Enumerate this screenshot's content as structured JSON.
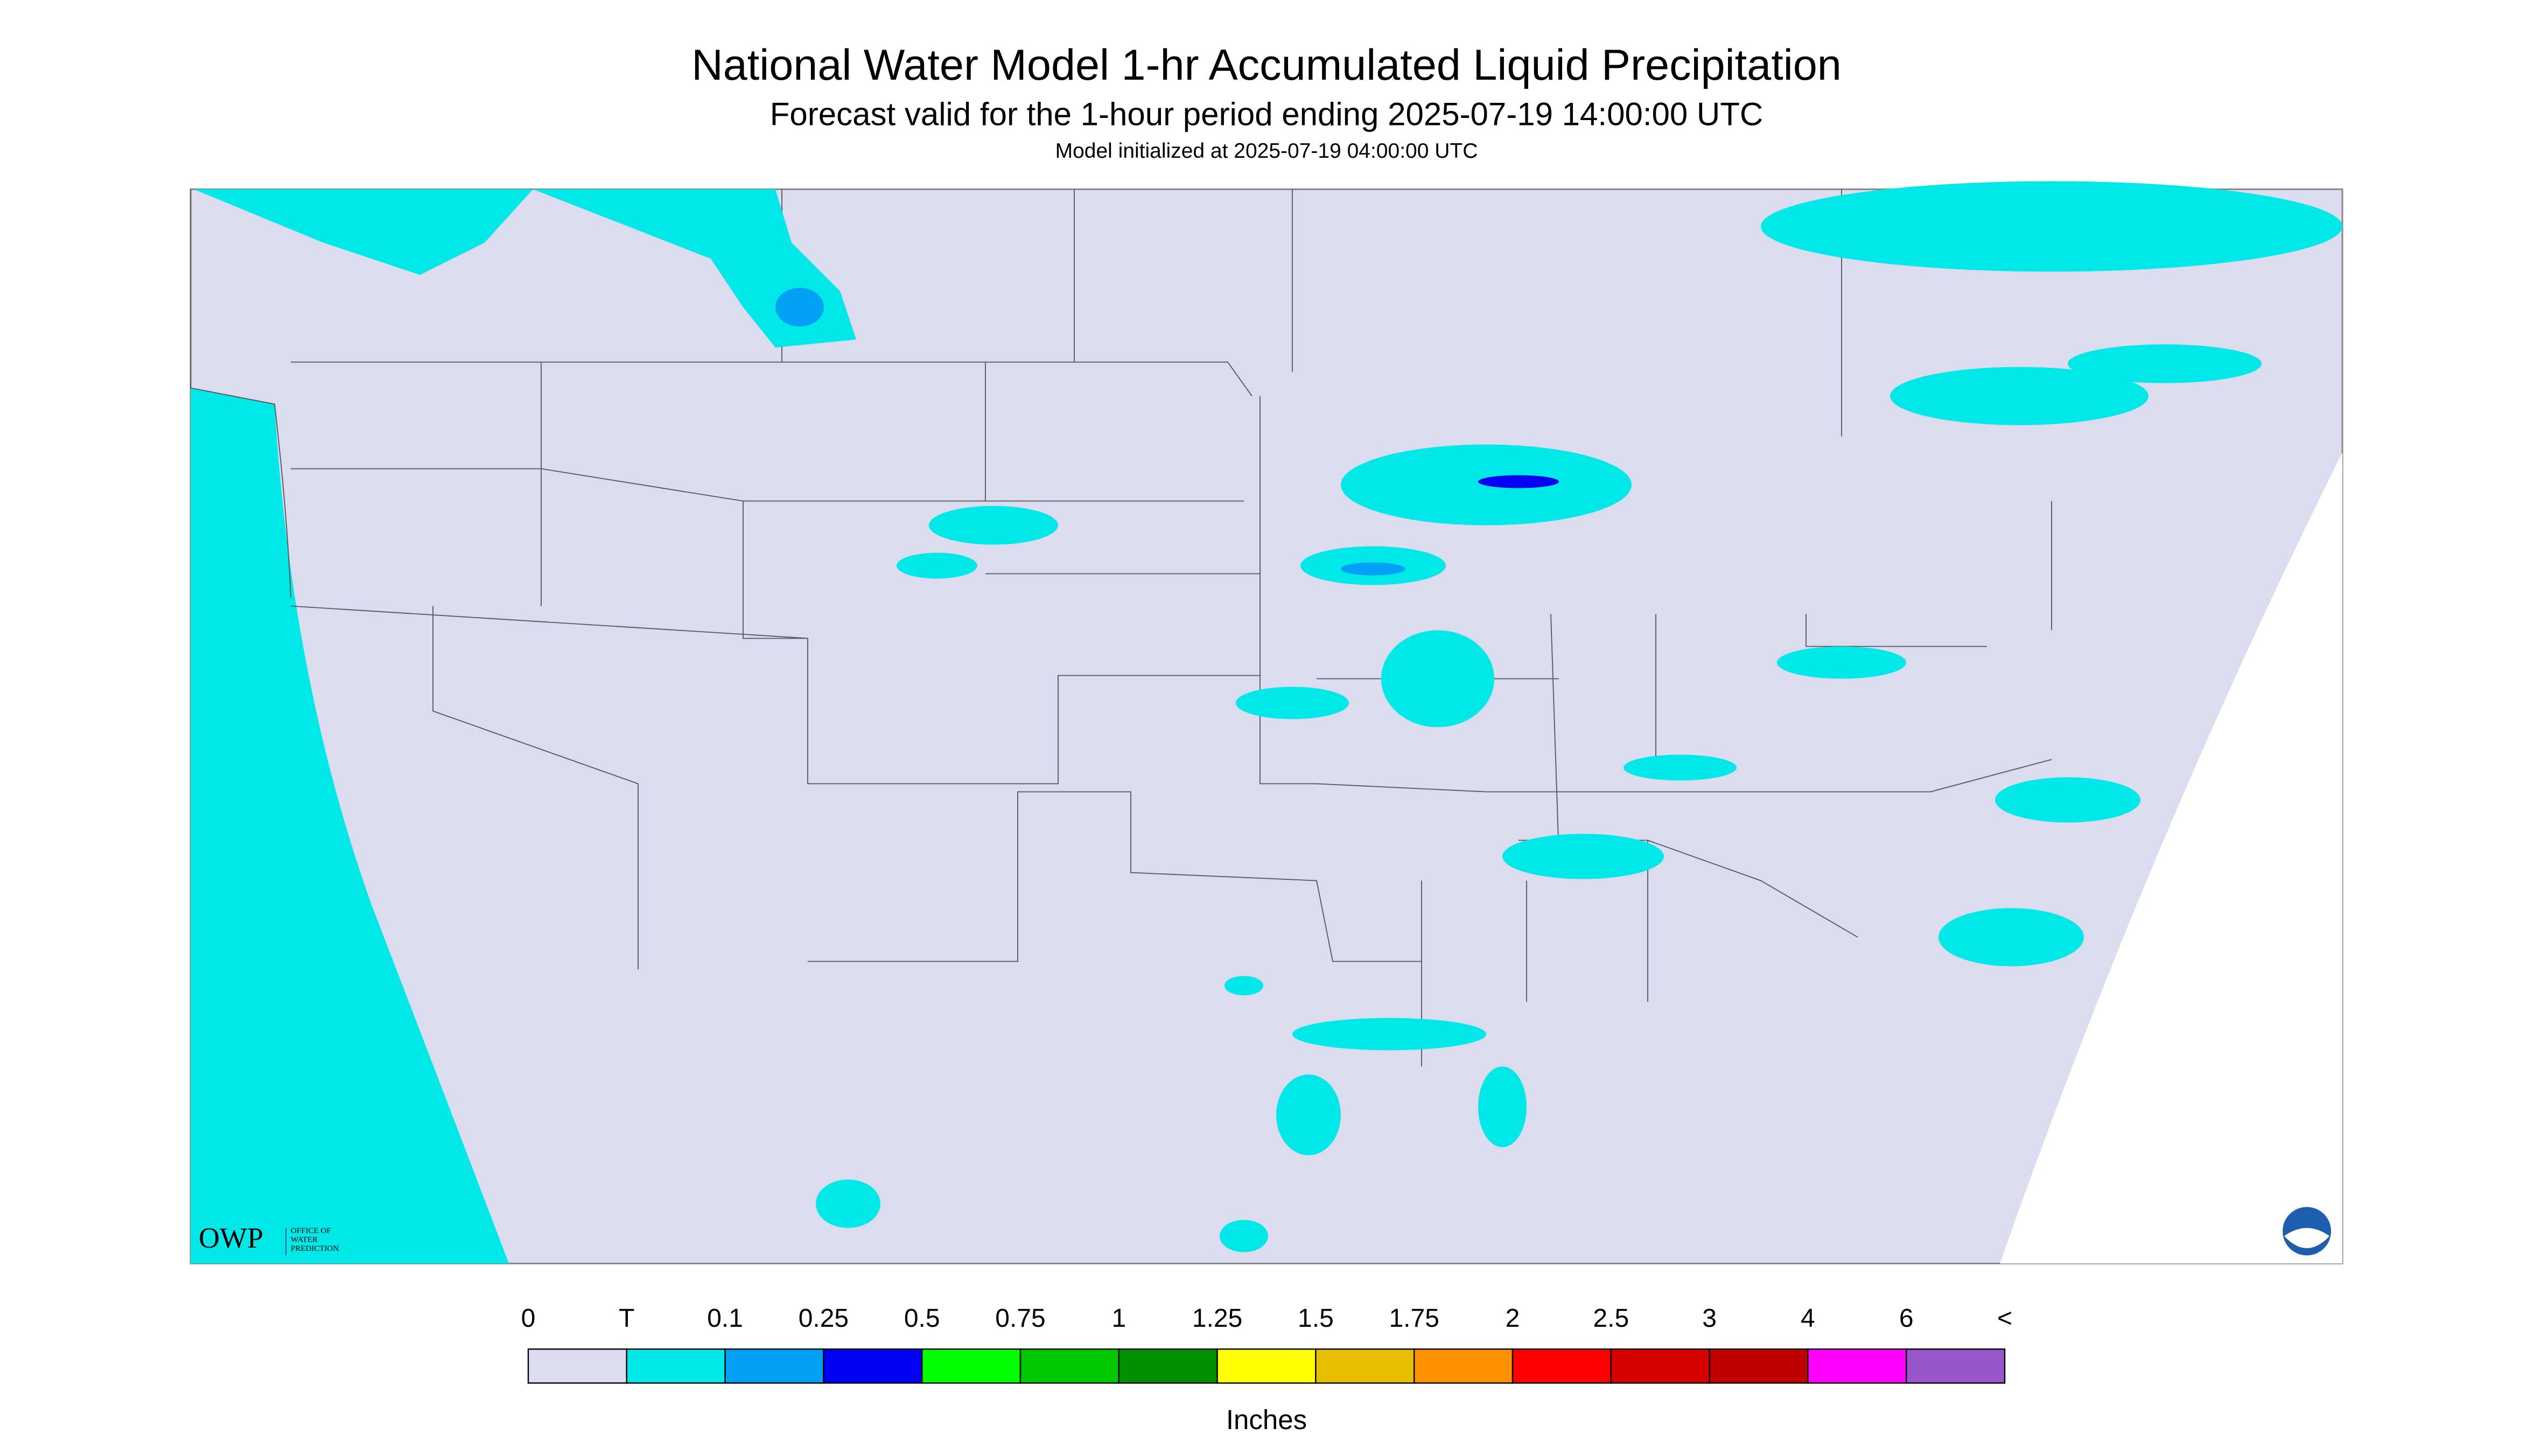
{
  "header": {
    "title": "National Water Model 1-hr Accumulated Liquid Precipitation",
    "subtitle": "Forecast valid for the 1-hour period ending 2025-07-19 14:00:00 UTC",
    "initialized": "Model initialized at 2025-07-19 04:00:00 UTC"
  },
  "legend": {
    "labels": [
      "0",
      "T",
      "0.1",
      "0.25",
      "0.5",
      "0.75",
      "1",
      "1.25",
      "1.5",
      "1.75",
      "2",
      "2.5",
      "3",
      "4",
      "6",
      "<"
    ],
    "colors": [
      "#dcdcf0",
      "#00e8e8",
      "#00a0f5",
      "#0000f5",
      "#00ff00",
      "#00c800",
      "#009000",
      "#ffff00",
      "#e6c000",
      "#ff9000",
      "#ff0000",
      "#d60000",
      "#c00000",
      "#ff00ff",
      "#9955c9"
    ],
    "unit": "Inches"
  },
  "logo": {
    "name": "OWP",
    "lines": [
      "OFFICE OF",
      "WATER",
      "PREDICTION"
    ]
  }
}
